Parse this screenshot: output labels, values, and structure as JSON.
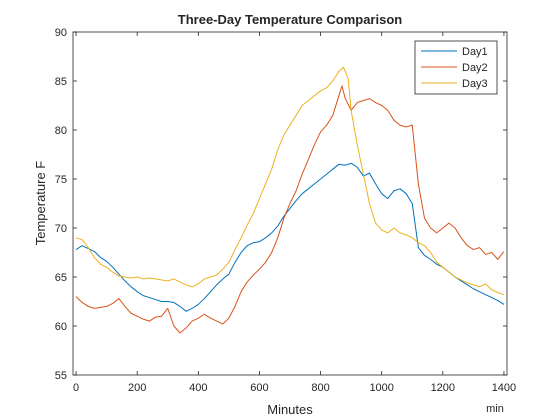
{
  "chart_data": {
    "type": "line",
    "title": "Three-Day Temperature Comparison",
    "xlabel": "Minutes",
    "ylabel": "Temperature F",
    "x_unit_label": "min",
    "xlim": [
      -10,
      1410
    ],
    "ylim": [
      55,
      90
    ],
    "xticks": [
      0,
      200,
      400,
      600,
      800,
      1000,
      1200,
      1400
    ],
    "yticks": [
      55,
      60,
      65,
      70,
      75,
      80,
      85,
      90
    ],
    "grid": false,
    "legend_position": "top-right",
    "series": [
      {
        "name": "Day1",
        "color": "#0072BD",
        "points": [
          [
            0,
            67.8
          ],
          [
            20,
            68.2
          ],
          [
            40,
            67.9
          ],
          [
            60,
            67.6
          ],
          [
            80,
            67.0
          ],
          [
            100,
            66.6
          ],
          [
            120,
            66.0
          ],
          [
            140,
            65.3
          ],
          [
            160,
            64.6
          ],
          [
            180,
            64.0
          ],
          [
            200,
            63.5
          ],
          [
            220,
            63.1
          ],
          [
            240,
            62.9
          ],
          [
            260,
            62.7
          ],
          [
            280,
            62.5
          ],
          [
            300,
            62.5
          ],
          [
            320,
            62.4
          ],
          [
            340,
            62.0
          ],
          [
            360,
            61.5
          ],
          [
            380,
            61.8
          ],
          [
            400,
            62.2
          ],
          [
            420,
            62.8
          ],
          [
            440,
            63.5
          ],
          [
            460,
            64.2
          ],
          [
            480,
            64.8
          ],
          [
            500,
            65.3
          ],
          [
            520,
            66.5
          ],
          [
            540,
            67.5
          ],
          [
            560,
            68.2
          ],
          [
            580,
            68.5
          ],
          [
            600,
            68.6
          ],
          [
            620,
            69.0
          ],
          [
            640,
            69.5
          ],
          [
            660,
            70.2
          ],
          [
            680,
            71.2
          ],
          [
            700,
            72.0
          ],
          [
            720,
            72.8
          ],
          [
            740,
            73.5
          ],
          [
            760,
            74.0
          ],
          [
            780,
            74.5
          ],
          [
            800,
            75.0
          ],
          [
            820,
            75.5
          ],
          [
            840,
            76.0
          ],
          [
            860,
            76.5
          ],
          [
            880,
            76.4
          ],
          [
            900,
            76.6
          ],
          [
            920,
            76.2
          ],
          [
            940,
            75.3
          ],
          [
            960,
            75.6
          ],
          [
            980,
            74.5
          ],
          [
            1000,
            73.5
          ],
          [
            1020,
            73.0
          ],
          [
            1040,
            73.8
          ],
          [
            1060,
            74.0
          ],
          [
            1080,
            73.5
          ],
          [
            1100,
            72.5
          ],
          [
            1120,
            68.0
          ],
          [
            1140,
            67.2
          ],
          [
            1160,
            66.8
          ],
          [
            1180,
            66.3
          ],
          [
            1200,
            66.0
          ],
          [
            1220,
            65.5
          ],
          [
            1240,
            65.0
          ],
          [
            1260,
            64.6
          ],
          [
            1280,
            64.2
          ],
          [
            1300,
            63.8
          ],
          [
            1320,
            63.5
          ],
          [
            1340,
            63.2
          ],
          [
            1360,
            62.9
          ],
          [
            1380,
            62.6
          ],
          [
            1400,
            62.2
          ]
        ]
      },
      {
        "name": "Day2",
        "color": "#D95319",
        "points": [
          [
            0,
            63.0
          ],
          [
            20,
            62.4
          ],
          [
            40,
            62.0
          ],
          [
            60,
            61.8
          ],
          [
            80,
            61.9
          ],
          [
            100,
            62.0
          ],
          [
            120,
            62.3
          ],
          [
            140,
            62.8
          ],
          [
            160,
            62.0
          ],
          [
            180,
            61.3
          ],
          [
            200,
            61.0
          ],
          [
            220,
            60.7
          ],
          [
            240,
            60.5
          ],
          [
            260,
            60.9
          ],
          [
            280,
            61.0
          ],
          [
            300,
            61.8
          ],
          [
            320,
            60.0
          ],
          [
            340,
            59.3
          ],
          [
            360,
            59.8
          ],
          [
            380,
            60.5
          ],
          [
            400,
            60.8
          ],
          [
            420,
            61.2
          ],
          [
            440,
            60.8
          ],
          [
            460,
            60.5
          ],
          [
            480,
            60.2
          ],
          [
            500,
            60.8
          ],
          [
            520,
            62.0
          ],
          [
            540,
            63.5
          ],
          [
            560,
            64.5
          ],
          [
            580,
            65.2
          ],
          [
            600,
            65.8
          ],
          [
            620,
            66.5
          ],
          [
            640,
            67.5
          ],
          [
            660,
            69.0
          ],
          [
            680,
            71.0
          ],
          [
            700,
            72.5
          ],
          [
            720,
            73.8
          ],
          [
            740,
            75.5
          ],
          [
            760,
            77.0
          ],
          [
            780,
            78.5
          ],
          [
            800,
            79.8
          ],
          [
            820,
            80.5
          ],
          [
            840,
            81.5
          ],
          [
            860,
            83.5
          ],
          [
            870,
            84.5
          ],
          [
            880,
            83.3
          ],
          [
            900,
            82.0
          ],
          [
            920,
            82.8
          ],
          [
            940,
            83.0
          ],
          [
            960,
            83.2
          ],
          [
            980,
            82.8
          ],
          [
            1000,
            82.5
          ],
          [
            1020,
            82.0
          ],
          [
            1040,
            81.0
          ],
          [
            1060,
            80.5
          ],
          [
            1080,
            80.3
          ],
          [
            1100,
            80.5
          ],
          [
            1120,
            74.5
          ],
          [
            1140,
            71.0
          ],
          [
            1160,
            70.0
          ],
          [
            1180,
            69.5
          ],
          [
            1200,
            70.0
          ],
          [
            1220,
            70.5
          ],
          [
            1240,
            70.0
          ],
          [
            1260,
            69.0
          ],
          [
            1280,
            68.2
          ],
          [
            1300,
            67.8
          ],
          [
            1320,
            68.0
          ],
          [
            1340,
            67.3
          ],
          [
            1360,
            67.5
          ],
          [
            1380,
            66.8
          ],
          [
            1400,
            67.6
          ]
        ]
      },
      {
        "name": "Day3",
        "color": "#EDB120",
        "points": [
          [
            0,
            69.0
          ],
          [
            20,
            68.8
          ],
          [
            40,
            68.0
          ],
          [
            60,
            67.0
          ],
          [
            80,
            66.3
          ],
          [
            100,
            66.0
          ],
          [
            120,
            65.5
          ],
          [
            140,
            65.1
          ],
          [
            160,
            65.0
          ],
          [
            180,
            64.9
          ],
          [
            200,
            65.0
          ],
          [
            220,
            64.8
          ],
          [
            240,
            64.9
          ],
          [
            260,
            64.8
          ],
          [
            280,
            64.7
          ],
          [
            300,
            64.6
          ],
          [
            320,
            64.8
          ],
          [
            340,
            64.5
          ],
          [
            360,
            64.2
          ],
          [
            380,
            64.0
          ],
          [
            400,
            64.3
          ],
          [
            420,
            64.8
          ],
          [
            440,
            65.0
          ],
          [
            460,
            65.2
          ],
          [
            480,
            65.8
          ],
          [
            500,
            66.5
          ],
          [
            520,
            67.8
          ],
          [
            540,
            69.0
          ],
          [
            560,
            70.3
          ],
          [
            580,
            71.5
          ],
          [
            600,
            73.0
          ],
          [
            620,
            74.5
          ],
          [
            640,
            76.0
          ],
          [
            660,
            78.0
          ],
          [
            680,
            79.5
          ],
          [
            700,
            80.5
          ],
          [
            720,
            81.5
          ],
          [
            740,
            82.5
          ],
          [
            760,
            83.0
          ],
          [
            780,
            83.5
          ],
          [
            800,
            84.0
          ],
          [
            820,
            84.3
          ],
          [
            840,
            85.0
          ],
          [
            860,
            86.0
          ],
          [
            875,
            86.4
          ],
          [
            890,
            85.3
          ],
          [
            900,
            82.0
          ],
          [
            920,
            78.5
          ],
          [
            940,
            75.5
          ],
          [
            960,
            72.5
          ],
          [
            980,
            70.5
          ],
          [
            1000,
            69.8
          ],
          [
            1020,
            69.5
          ],
          [
            1040,
            70.0
          ],
          [
            1060,
            69.5
          ],
          [
            1080,
            69.3
          ],
          [
            1100,
            69.0
          ],
          [
            1120,
            68.5
          ],
          [
            1140,
            68.2
          ],
          [
            1160,
            67.5
          ],
          [
            1180,
            66.5
          ],
          [
            1200,
            66.0
          ],
          [
            1220,
            65.5
          ],
          [
            1240,
            65.0
          ],
          [
            1260,
            64.7
          ],
          [
            1280,
            64.4
          ],
          [
            1300,
            64.2
          ],
          [
            1320,
            64.0
          ],
          [
            1340,
            64.3
          ],
          [
            1360,
            63.7
          ],
          [
            1380,
            63.4
          ],
          [
            1400,
            63.2
          ]
        ]
      }
    ]
  }
}
